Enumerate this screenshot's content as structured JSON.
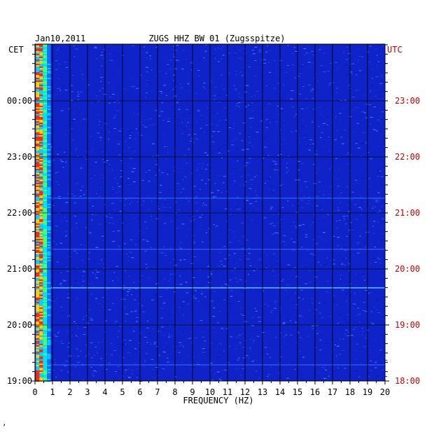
{
  "header": {
    "date": "Jan10,2011",
    "station": "ZUGS HHZ BW 01 (Zugsspitze)"
  },
  "chart_data": {
    "type": "heatmap",
    "title": "ZUGS HHZ BW 01 (Zugsspitze)",
    "date": "Jan10,2011",
    "xlabel": "FREQUENCY (HZ)",
    "xlim": [
      0,
      20
    ],
    "x_ticks": [
      "0",
      "1",
      "2",
      "3",
      "4",
      "5",
      "6",
      "7",
      "8",
      "9",
      "10",
      "11",
      "12",
      "13",
      "14",
      "15",
      "16",
      "17",
      "18",
      "19",
      "20"
    ],
    "left_axis": {
      "label": "CET",
      "ticks": [
        "00:00",
        "23:00",
        "22:00",
        "21:00",
        "20:00",
        "19:00"
      ]
    },
    "right_axis": {
      "label": "UTC",
      "ticks": [
        "23:00",
        "22:00",
        "21:00",
        "20:00",
        "19:00",
        "18:00"
      ]
    },
    "grid": true,
    "colors": {
      "background": "#0f23c8",
      "low_freq_band": [
        "#ff2a00",
        "#ffd000",
        "#00d4ff"
      ],
      "right_axis_text": "#cc0000"
    }
  },
  "footer": {
    "mark": "ʼ"
  }
}
